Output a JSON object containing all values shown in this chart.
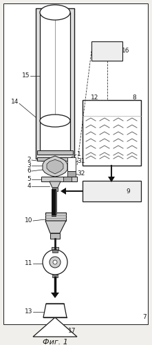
{
  "title": "Фиг. 1",
  "bg_color": "#f0efeb",
  "line_color": "#1a1a1a",
  "fig_width": 2.21,
  "fig_height": 5.0,
  "dpi": 100
}
